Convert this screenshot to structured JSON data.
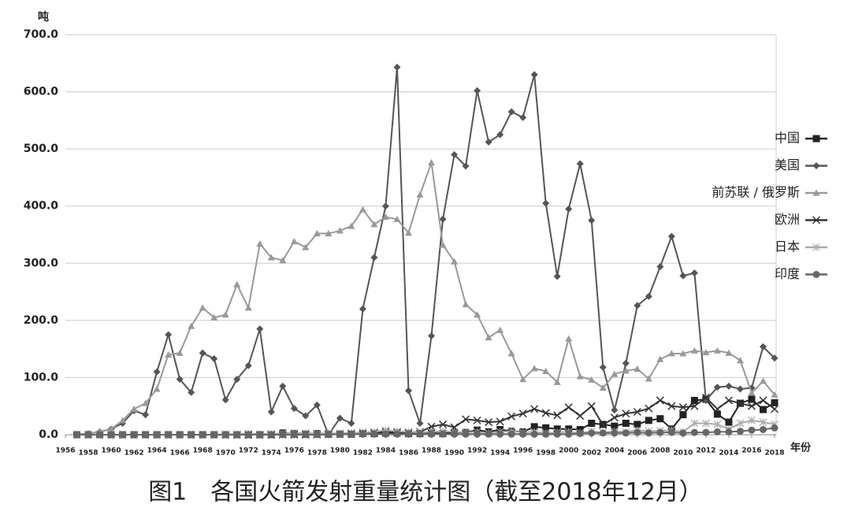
{
  "chart_data": {
    "type": "line",
    "title": "图1　各国火箭发射重量统计图（截至2018年12月）",
    "y_label": "吨",
    "x_label": "年份",
    "x": [
      1957,
      1958,
      1959,
      1960,
      1961,
      1962,
      1963,
      1964,
      1965,
      1966,
      1967,
      1968,
      1969,
      1970,
      1971,
      1972,
      1973,
      1974,
      1975,
      1976,
      1977,
      1978,
      1979,
      1980,
      1981,
      1982,
      1983,
      1984,
      1985,
      1986,
      1987,
      1988,
      1989,
      1990,
      1991,
      1992,
      1993,
      1994,
      1995,
      1996,
      1997,
      1998,
      1999,
      2000,
      2001,
      2002,
      2003,
      2004,
      2005,
      2006,
      2007,
      2008,
      2009,
      2010,
      2011,
      2012,
      2013,
      2014,
      2015,
      2016,
      2017,
      2018
    ],
    "xlim": [
      1956,
      2018
    ],
    "xticks": [
      1956,
      1958,
      1960,
      1962,
      1964,
      1966,
      1968,
      1970,
      1972,
      1974,
      1976,
      1978,
      1980,
      1982,
      1984,
      1986,
      1988,
      1990,
      1992,
      1994,
      1996,
      1998,
      2000,
      2002,
      2004,
      2006,
      2008,
      2010,
      2012,
      2014,
      2016,
      2018
    ],
    "ylim": [
      0,
      700
    ],
    "yticks": [
      {
        "value": 0,
        "label": "0.0"
      },
      {
        "value": 100,
        "label": "100.0"
      },
      {
        "value": 200,
        "label": "200.0"
      },
      {
        "value": 300,
        "label": "300.0"
      },
      {
        "value": 400,
        "label": "400.0"
      },
      {
        "value": 500,
        "label": "500.0"
      },
      {
        "value": 600,
        "label": "600.0"
      },
      {
        "value": 700,
        "label": "700.0"
      }
    ],
    "grid": true,
    "legend": "right",
    "series": [
      {
        "name": "中国",
        "color": "#222222",
        "marker": "square",
        "values": [
          0,
          0,
          0,
          0,
          0,
          0,
          0,
          0,
          0,
          0,
          0,
          0,
          0,
          0,
          0,
          0,
          0,
          0,
          3,
          2,
          1,
          2,
          1,
          1,
          1,
          2,
          2,
          3,
          3,
          2,
          2,
          3,
          2,
          4,
          4,
          8,
          5,
          9,
          6,
          5,
          14,
          12,
          10,
          10,
          9,
          20,
          18,
          15,
          20,
          18,
          25,
          28,
          10,
          35,
          60,
          62,
          36,
          22,
          55,
          62,
          44,
          56
        ]
      },
      {
        "name": "美国",
        "color": "#555555",
        "marker": "diamond",
        "values": [
          0,
          2,
          5,
          10,
          20,
          42,
          35,
          110,
          175,
          97,
          74,
          143,
          133,
          61,
          97,
          121,
          185,
          40,
          85,
          46,
          33,
          52,
          0,
          29,
          20,
          220,
          310,
          400,
          643,
          77,
          20,
          173,
          377,
          490,
          470,
          602,
          512,
          525,
          565,
          555,
          630,
          405,
          277,
          395,
          474,
          375,
          118,
          43,
          125,
          226,
          242,
          294,
          347,
          278,
          283,
          60,
          83,
          85,
          80,
          82,
          154,
          134
        ]
      },
      {
        "name": "前苏联 / 俄罗斯",
        "color": "#999999",
        "marker": "triangle",
        "values": [
          1,
          2,
          5,
          10,
          25,
          45,
          55,
          80,
          140,
          143,
          190,
          222,
          205,
          210,
          263,
          222,
          334,
          310,
          305,
          338,
          328,
          352,
          352,
          357,
          365,
          394,
          368,
          381,
          377,
          353,
          420,
          476,
          332,
          303,
          228,
          210,
          170,
          183,
          142,
          97,
          116,
          111,
          92,
          168,
          102,
          96,
          82,
          106,
          112,
          115,
          98,
          132,
          142,
          142,
          147,
          144,
          147,
          143,
          130,
          73,
          94,
          70
        ]
      },
      {
        "name": "欧洲",
        "color": "#333333",
        "marker": "cross",
        "values": [
          0,
          0,
          0,
          0,
          0,
          0,
          0,
          0,
          0,
          0,
          0,
          0,
          0,
          0,
          0,
          0,
          0,
          0,
          0,
          0,
          0,
          0,
          1,
          2,
          3,
          4,
          4,
          5,
          5,
          4,
          5,
          14,
          18,
          13,
          27,
          25,
          22,
          23,
          32,
          37,
          45,
          38,
          34,
          48,
          33,
          50,
          17,
          30,
          37,
          40,
          46,
          60,
          50,
          48,
          50,
          65,
          45,
          60,
          55,
          50,
          60,
          45
        ]
      },
      {
        "name": "日本",
        "color": "#aaaaaa",
        "marker": "star",
        "values": [
          0,
          0,
          0,
          0,
          0,
          0,
          0,
          0,
          0,
          0,
          0,
          0,
          0,
          1,
          1,
          2,
          1,
          2,
          2,
          3,
          3,
          2,
          3,
          2,
          3,
          4,
          5,
          8,
          6,
          5,
          4,
          5,
          6,
          5,
          4,
          5,
          3,
          5,
          6,
          4,
          5,
          3,
          4,
          5,
          3,
          6,
          4,
          6,
          5,
          8,
          6,
          7,
          8,
          5,
          20,
          20,
          18,
          10,
          20,
          25,
          22,
          18
        ]
      },
      {
        "name": "印度",
        "color": "#666666",
        "marker": "circle",
        "values": [
          0,
          0,
          0,
          0,
          0,
          0,
          0,
          0,
          0,
          0,
          0,
          0,
          0,
          0,
          0,
          0,
          0,
          0,
          0,
          0,
          0,
          0,
          0,
          1,
          1,
          1,
          1,
          1,
          1,
          1,
          1,
          1,
          1,
          1,
          1,
          1,
          1,
          1,
          1,
          1,
          1,
          1,
          1,
          1,
          2,
          3,
          3,
          3,
          3,
          4,
          3,
          4,
          4,
          3,
          4,
          4,
          5,
          5,
          6,
          8,
          9,
          12
        ]
      }
    ]
  }
}
